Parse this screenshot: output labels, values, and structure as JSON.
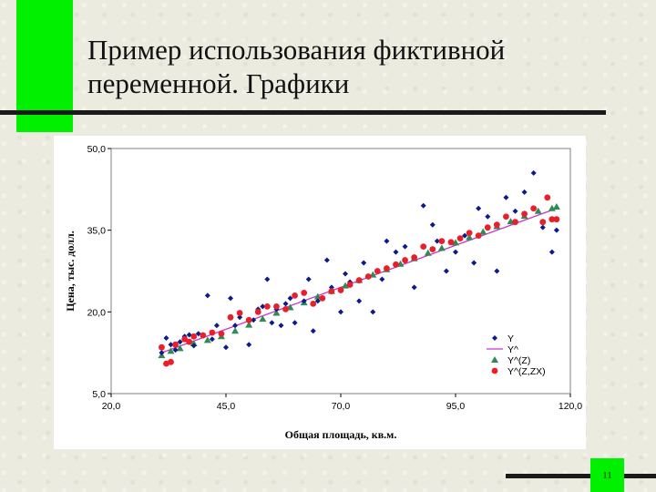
{
  "slide": {
    "title": "Пример использования фиктивной\nпеременной. Графики",
    "page_number": "11",
    "accent_color": "#00f000"
  },
  "chart_data": {
    "type": "scatter",
    "title": "",
    "xlabel": "Общая площадь, кв.м.",
    "ylabel": "Цена, тыс. долл.",
    "xlim": [
      20,
      120
    ],
    "ylim": [
      5,
      50
    ],
    "x_ticks": [
      "20,0",
      "45,0",
      "70,0",
      "95,0",
      "120,0"
    ],
    "y_ticks": [
      "5,0",
      "20,0",
      "35,0",
      "50,0"
    ],
    "grid": false,
    "legend_position": "bottom-right",
    "series": [
      {
        "name": "Y",
        "marker": "diamond",
        "color": "#0c1a8c",
        "x": [
          31,
          32,
          33,
          34,
          35,
          36,
          37,
          38,
          39,
          41,
          42,
          43,
          44,
          45,
          46,
          47,
          48,
          50,
          51,
          52,
          53,
          54,
          55,
          56,
          57,
          58,
          59,
          60,
          62,
          63,
          64,
          65,
          67,
          68,
          70,
          71,
          72,
          74,
          75,
          77,
          79,
          80,
          82,
          84,
          86,
          88,
          90,
          91,
          93,
          95,
          97,
          99,
          100,
          102,
          104,
          106,
          108,
          110,
          112,
          114,
          116,
          117
        ],
        "y": [
          12.5,
          15.2,
          14.0,
          13.0,
          14.5,
          15.5,
          15.8,
          13.8,
          16.0,
          23.0,
          15.0,
          17.5,
          16.0,
          13.5,
          22.5,
          17.5,
          19.0,
          14.0,
          18.5,
          20.5,
          21.0,
          26.0,
          18.0,
          20.5,
          17.5,
          21.5,
          22.5,
          18.0,
          22.0,
          26.0,
          16.5,
          22.0,
          29.5,
          24.5,
          20.0,
          27.0,
          25.5,
          22.0,
          29.0,
          20.0,
          26.0,
          33.0,
          31.0,
          32.0,
          24.5,
          39.5,
          36.0,
          33.0,
          27.5,
          31.0,
          34.0,
          29.0,
          39.0,
          37.5,
          27.5,
          41.0,
          38.5,
          42.0,
          45.5,
          35.5,
          31.0,
          35.0
        ]
      },
      {
        "name": "Y^",
        "marker": "line",
        "color": "#cc33cc",
        "x": [
          31,
          117
        ],
        "y": [
          12.5,
          39.0
        ]
      },
      {
        "name": "Y^(Z)",
        "marker": "triangle",
        "color": "#2e8b57",
        "x": [
          31,
          33,
          35,
          38,
          41,
          44,
          47,
          50,
          53,
          56,
          59,
          62,
          65,
          68,
          71,
          74,
          77,
          80,
          83,
          86,
          89,
          92,
          95,
          98,
          101,
          104,
          107,
          110,
          113,
          116,
          117
        ],
        "y": [
          12.0,
          12.8,
          13.3,
          14.2,
          14.8,
          15.5,
          16.5,
          17.6,
          18.7,
          19.8,
          20.8,
          21.7,
          22.8,
          23.8,
          24.8,
          25.8,
          26.8,
          27.8,
          28.8,
          29.8,
          30.8,
          31.7,
          32.7,
          33.7,
          34.7,
          35.7,
          36.6,
          37.6,
          38.5,
          39.0,
          39.3
        ]
      },
      {
        "name": "Y^(Z,ZX)",
        "marker": "circle",
        "color": "#e8202a",
        "x": [
          31,
          32,
          33,
          34,
          36,
          37,
          38,
          40,
          42,
          44,
          46,
          48,
          50,
          52,
          54,
          56,
          58,
          60,
          62,
          64,
          66,
          68,
          70,
          72,
          74,
          76,
          78,
          80,
          82,
          84,
          86,
          88,
          90,
          92,
          94,
          96,
          98,
          100,
          102,
          104,
          106,
          108,
          110,
          112,
          114,
          115,
          116,
          117
        ],
        "y": [
          13.5,
          10.5,
          10.8,
          14.0,
          15.0,
          14.5,
          15.5,
          15.7,
          16.2,
          16.0,
          19.0,
          19.8,
          18.5,
          20.0,
          21.0,
          21.0,
          20.5,
          23.0,
          23.5,
          21.5,
          22.5,
          23.8,
          24.0,
          25.0,
          25.8,
          26.5,
          27.5,
          28.0,
          28.7,
          29.5,
          30.0,
          32.0,
          31.5,
          33.0,
          32.8,
          33.5,
          34.5,
          34.0,
          35.5,
          36.0,
          37.5,
          36.5,
          38.0,
          39.0,
          36.5,
          41.0,
          37.0,
          37.0
        ]
      }
    ]
  }
}
